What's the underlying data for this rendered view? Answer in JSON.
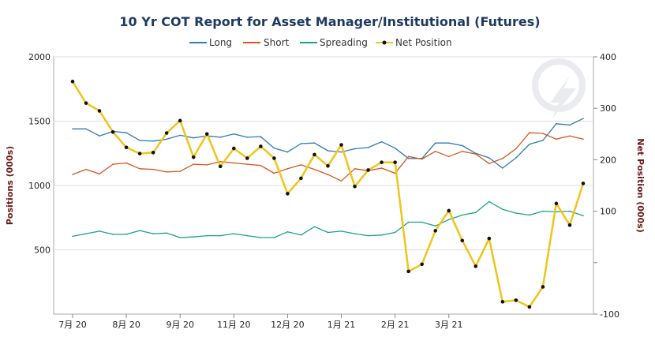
{
  "chart_data": {
    "type": "line",
    "title": "10 Yr COT Report for Asset Manager/Institutional (Futures)",
    "ylabel_left": "Positions (000s)",
    "ylabel_right": "Net Position (000s)",
    "ylim_left": [
      0,
      2000
    ],
    "ylim_right": [
      -100,
      400
    ],
    "yticks_left": [
      "2000",
      "1500",
      "1000",
      "500"
    ],
    "yticks_right": [
      "400",
      "300",
      "200",
      "100",
      "-100"
    ],
    "xticks": [
      "7月 20",
      "8月 20",
      "9月 20",
      "11月 20",
      "12月 20",
      "1月 21",
      "2月 21",
      "3月 21"
    ],
    "xtick_index": [
      0,
      4,
      8,
      12,
      16,
      20,
      24,
      28
    ],
    "grid": true,
    "legend_position": "top-center",
    "colors": {
      "Long": "#2f7ab5",
      "Short": "#d2581e",
      "Spreading": "#1aa38a",
      "Net Position": "#f0c419"
    },
    "series": [
      {
        "name": "Long",
        "axis": "left",
        "values": [
          1440,
          1440,
          1385,
          1420,
          1410,
          1350,
          1345,
          1360,
          1390,
          1370,
          1385,
          1375,
          1400,
          1375,
          1380,
          1290,
          1260,
          1325,
          1330,
          1270,
          1260,
          1285,
          1295,
          1340,
          1290,
          1210,
          1210,
          1330,
          1330,
          1310,
          1250,
          1215,
          1135,
          1215,
          1320,
          1350,
          1480,
          1470,
          1520
        ]
      },
      {
        "name": "Short",
        "axis": "left",
        "values": [
          1085,
          1125,
          1090,
          1165,
          1175,
          1130,
          1125,
          1105,
          1110,
          1165,
          1160,
          1185,
          1175,
          1165,
          1155,
          1095,
          1130,
          1160,
          1125,
          1085,
          1035,
          1130,
          1115,
          1135,
          1095,
          1225,
          1205,
          1265,
          1225,
          1265,
          1245,
          1170,
          1210,
          1285,
          1410,
          1405,
          1360,
          1385,
          1360
        ]
      },
      {
        "name": "Spreading",
        "axis": "left",
        "values": [
          605,
          625,
          645,
          620,
          620,
          650,
          625,
          630,
          595,
          600,
          610,
          610,
          625,
          610,
          595,
          595,
          640,
          615,
          680,
          635,
          645,
          625,
          610,
          615,
          635,
          715,
          715,
          685,
          735,
          770,
          790,
          875,
          815,
          785,
          770,
          800,
          795,
          800,
          765
        ]
      },
      {
        "name": "Net Position",
        "axis": "right",
        "values": [
          352,
          310,
          295,
          254,
          224,
          212,
          214,
          252,
          276,
          205,
          250,
          187,
          222,
          203,
          226,
          203,
          134,
          164,
          210,
          188,
          229,
          148,
          180,
          195,
          195,
          -17,
          -3,
          62,
          101,
          43,
          -7,
          47,
          -76,
          -73,
          -86,
          -47,
          115,
          73,
          154
        ]
      }
    ]
  },
  "legend": {
    "long": "Long",
    "short": "Short",
    "spreading": "Spreading",
    "net": "Net Position"
  }
}
